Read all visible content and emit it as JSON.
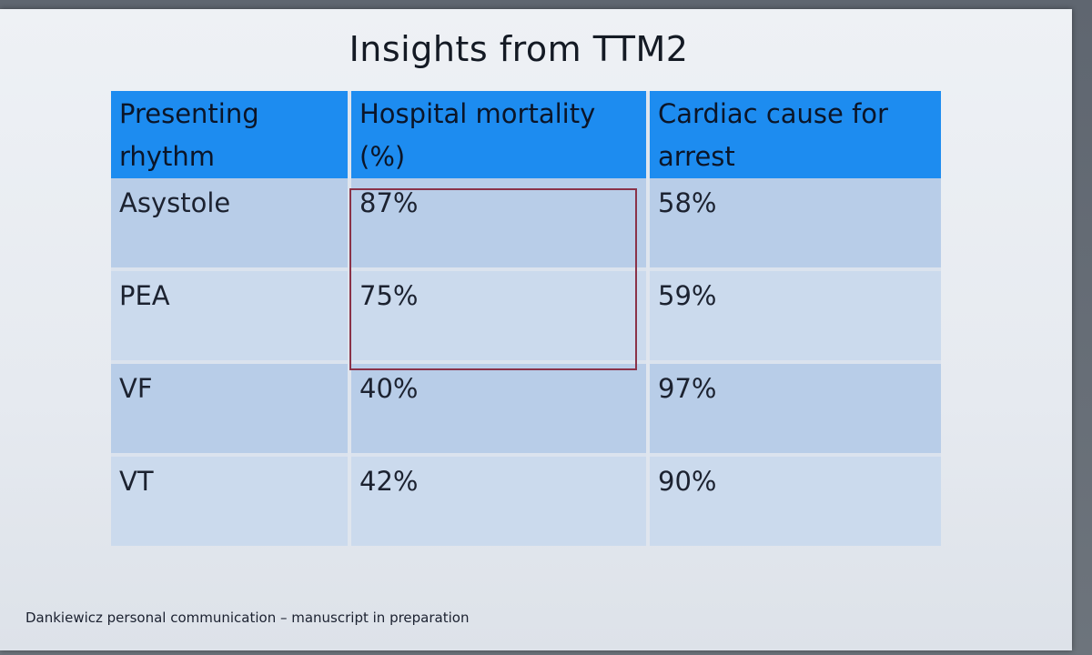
{
  "slide": {
    "title": "Insights from TTM2",
    "headers": [
      "Presenting rhythm",
      "Hospital mortality (%)",
      "Cardiac cause for arrest"
    ],
    "rows": [
      {
        "rhythm": "Asystole",
        "mortality": "87%",
        "cardiac": "58%"
      },
      {
        "rhythm": "PEA",
        "mortality": "75%",
        "cardiac": "59%"
      },
      {
        "rhythm": "VF",
        "mortality": "40%",
        "cardiac": "97%"
      },
      {
        "rhythm": "VT",
        "mortality": "42%",
        "cardiac": "90%"
      }
    ],
    "footnote": "Dankiewicz personal communication – manuscript in preparation"
  },
  "colors": {
    "header_bg": "#1d8cf0",
    "row_dark": "#b8cde8",
    "row_light": "#cbdaed",
    "highlight_border": "#8a3248"
  }
}
